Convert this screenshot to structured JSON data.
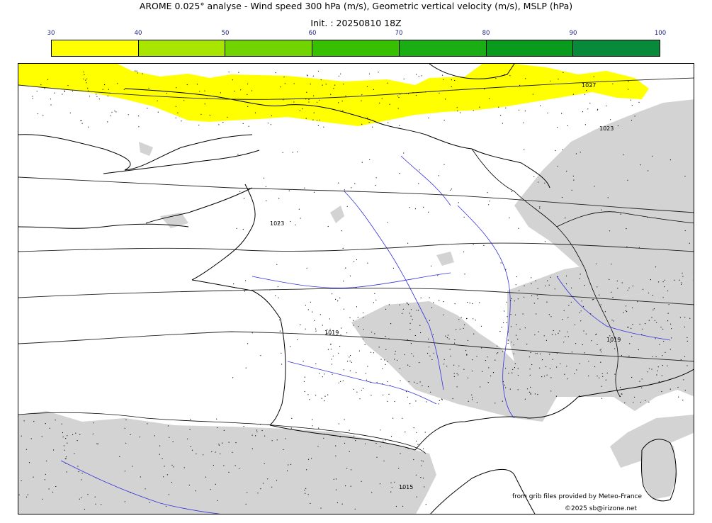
{
  "header": {
    "title": "AROME 0.025° analyse - Wind speed 300 hPa (m/s), Geometric vertical velocity (m/s), MSLP (hPa)",
    "init": "Init. : 20250810 18Z"
  },
  "colorbar": {
    "ticks": [
      "30",
      "40",
      "50",
      "60",
      "70",
      "80",
      "90",
      "100"
    ],
    "colors": [
      "#ffff00",
      "#a8e600",
      "#6fd400",
      "#36c000",
      "#1aae14",
      "#0a9a1e",
      "#088a3a",
      "#077a4a"
    ]
  },
  "map": {
    "isobar_labels": [
      "1027",
      "1023",
      "1019",
      "1019",
      "1015",
      "1023"
    ],
    "colors": {
      "jet": "#ffff00",
      "relief": "#d3d3d3",
      "coast": "#000000",
      "rivers": "#3333dd",
      "borders": "#000000"
    }
  },
  "credits": {
    "grib": "from grib files provided by Meteo-France",
    "copyright": "©2025 sb@irizone.net"
  }
}
